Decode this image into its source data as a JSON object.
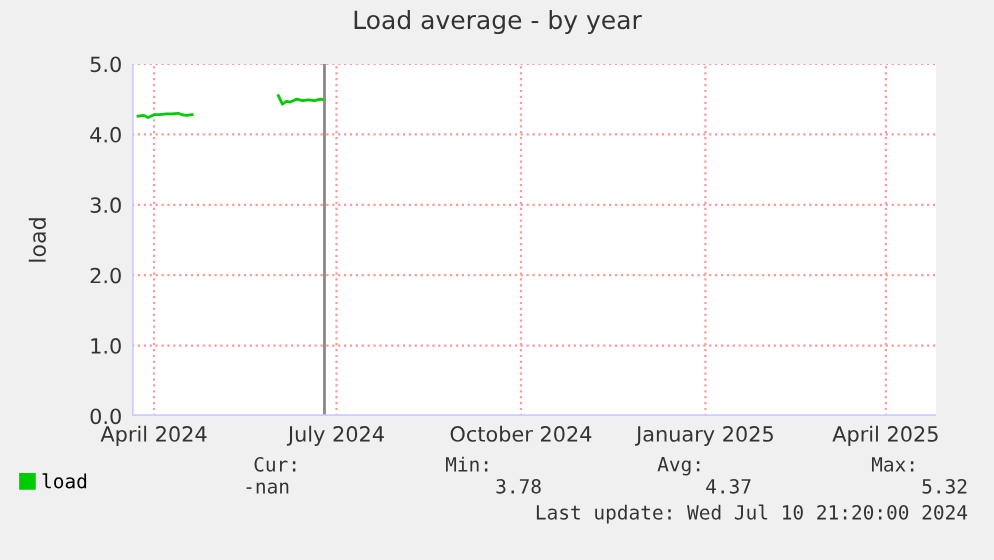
{
  "chart_data": {
    "type": "line",
    "title": "Load average - by year",
    "ylabel": "load",
    "series": [
      {
        "name": "load",
        "color": "#00cc00",
        "x": [
          "2024-03-24",
          "2024-03-27",
          "2024-03-29",
          "2024-04-01",
          "2024-04-04",
          "2024-04-07",
          "2024-04-10",
          "2024-04-13",
          "2024-04-15",
          "2024-04-17",
          "2024-04-20",
          "2024-04-21",
          "2024-06-02",
          "2024-06-04",
          "2024-06-06",
          "2024-06-08",
          "2024-06-11",
          "2024-06-14",
          "2024-06-17",
          "2024-06-20",
          "2024-06-23",
          "2024-06-25"
        ],
        "values": [
          4.26,
          4.27,
          4.24,
          4.28,
          4.28,
          4.29,
          4.29,
          4.3,
          4.28,
          4.27,
          4.28,
          null,
          4.55,
          4.43,
          4.47,
          4.46,
          4.5,
          4.48,
          4.49,
          4.48,
          4.5,
          4.49
        ]
      }
    ],
    "xlim": [
      "2024-03-21",
      "2025-04-26"
    ],
    "xticks": [
      {
        "value": "2024-04-01",
        "label": "April 2024"
      },
      {
        "value": "2024-07-01",
        "label": "July 2024"
      },
      {
        "value": "2024-10-01",
        "label": "October 2024"
      },
      {
        "value": "2025-01-01",
        "label": "January 2025"
      },
      {
        "value": "2025-04-01",
        "label": "April 2025"
      }
    ],
    "ylim": [
      0,
      5
    ],
    "yticks": [
      {
        "value": 0,
        "label": "0.0"
      },
      {
        "value": 1,
        "label": "1.0"
      },
      {
        "value": 2,
        "label": "2.0"
      },
      {
        "value": 3,
        "label": "3.0"
      },
      {
        "value": 4,
        "label": "4.0"
      },
      {
        "value": 5,
        "label": "5.0"
      }
    ],
    "ref_lines": [
      {
        "axis": "x",
        "value": "2024-06-25",
        "color": "#888888"
      }
    ],
    "grid": true,
    "legend": "bottom left",
    "marker": "none",
    "line_style": "solid",
    "annotations": [
      "Cur:",
      "-nan",
      "Min:",
      "3.78",
      "Avg:",
      "4.37",
      "Max:",
      "5.32",
      "Last update: Wed Jul 10 21:20:00 2024"
    ]
  }
}
